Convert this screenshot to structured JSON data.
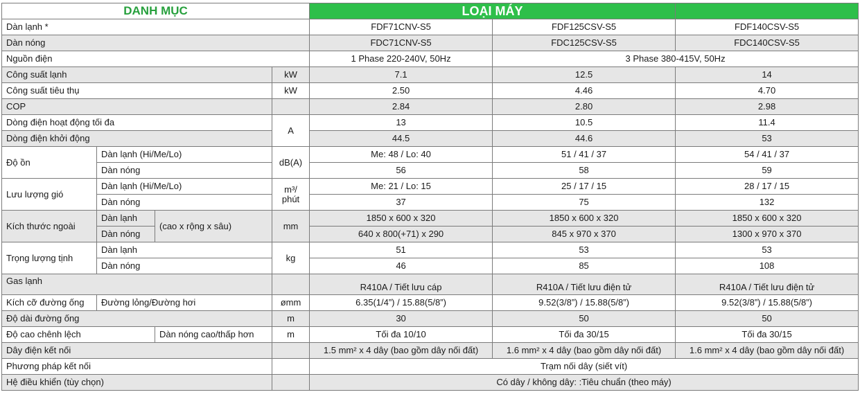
{
  "header": {
    "left": "DANH MỤC",
    "right": "LOẠI MÁY"
  },
  "rows": {
    "indoor": {
      "label": "Dàn lạnh *",
      "v1": "FDF71CNV-S5",
      "v2": "FDF125CSV-S5",
      "v3": "FDF140CSV-S5"
    },
    "outdoor": {
      "label": "Dàn nóng",
      "v1": "FDC71CNV-S5",
      "v2": "FDC125CSV-S5",
      "v3": "FDC140CSV-S5"
    },
    "power": {
      "label": "Nguồn điện",
      "v1": "1 Phase 220-240V, 50Hz",
      "v23": "3 Phase 380-415V, 50Hz"
    },
    "cooling": {
      "label": "Công suất lạnh",
      "unit": "kW",
      "v1": "7.1",
      "v2": "12.5",
      "v3": "14"
    },
    "consumption": {
      "label": "Công suất tiêu thụ",
      "unit": "kW",
      "v1": "2.50",
      "v2": "4.46",
      "v3": "4.70"
    },
    "cop": {
      "label": "COP",
      "v1": "2.84",
      "v2": "2.80",
      "v3": "2.98"
    },
    "max_current": {
      "label": "Dòng điện hoạt động tối đa",
      "unit": "A",
      "v1": "13",
      "v2": "10.5",
      "v3": "11.4"
    },
    "start_current": {
      "label": "Dòng điện khởi động",
      "v1": "44.5",
      "v2": "44.6",
      "v3": "53"
    },
    "noise": {
      "label": "Độ ồn",
      "unit": "dB(A)",
      "indoor": {
        "label": "Dàn lạnh (Hi/Me/Lo)",
        "v1": "Me: 48 / Lo: 40",
        "v2": "51 / 41 / 37",
        "v3": "54 / 41 / 37"
      },
      "outdoor": {
        "label": "Dàn nóng",
        "v1": "56",
        "v2": "58",
        "v3": "59"
      }
    },
    "airflow": {
      "label": "Lưu lượng gió",
      "unit_line1": "m³/",
      "unit_line2": "phút",
      "indoor": {
        "label": "Dàn lạnh (Hi/Me/Lo)",
        "v1": "Me: 21 / Lo: 15",
        "v2": "25 / 17 / 15",
        "v3": "28 / 17 / 15"
      },
      "outdoor": {
        "label": "Dàn nóng",
        "v1": "37",
        "v2": "75",
        "v3": "132"
      }
    },
    "dimensions": {
      "label": "Kích thước ngoài",
      "note": "(cao x rộng x sâu)",
      "unit": "mm",
      "indoor": {
        "label": "Dàn lạnh",
        "v1": "1850 x 600 x 320",
        "v2": "1850 x 600 x 320",
        "v3": "1850 x 600 x 320"
      },
      "outdoor": {
        "label": "Dàn nóng",
        "v1": "640 x 800(+71) x 290",
        "v2": "845 x 970 x 370",
        "v3": "1300 x 970 x 370"
      }
    },
    "weight": {
      "label": "Trọng lượng tịnh",
      "unit": "kg",
      "indoor": {
        "label": "Dàn lạnh",
        "v1": "51",
        "v2": "53",
        "v3": "53"
      },
      "outdoor": {
        "label": "Dàn nóng",
        "v1": "46",
        "v2": "85",
        "v3": "108"
      }
    },
    "gas": {
      "label": "Gas lạnh",
      "v1": "R410A / Tiết lưu cáp",
      "v2": "R410A / Tiết lưu điện tử",
      "v3": "R410A / Tiết lưu điện tử"
    },
    "pipe_size": {
      "label": "Kích cỡ đường ống",
      "sub": "Đường lỏng/Đường hơi",
      "unit": "ømm",
      "v1": "6.35(1/4”) / 15.88(5/8”)",
      "v2": "9.52(3/8”) / 15.88(5/8”)",
      "v3": "9.52(3/8”) / 15.88(5/8”)"
    },
    "pipe_length": {
      "label": "Độ dài đường ống",
      "unit": "m",
      "v1": "30",
      "v2": "50",
      "v3": "50"
    },
    "height_diff": {
      "label": "Độ cao chênh lệch",
      "sub": "Dàn nóng cao/thấp hơn",
      "unit": "m",
      "v1": "Tối đa 10/10",
      "v2": "Tối đa 30/15",
      "v3": "Tối đa 30/15"
    },
    "wiring": {
      "label": "Dây điện kết nối",
      "v1": "1.5 mm² x 4 dây (bao gồm dây nối đất)",
      "v2": "1.6 mm² x 4 dây (bao gồm dây nối đất)",
      "v3": "1.6 mm² x 4 dây (bao gồm dây nối đất)"
    },
    "connection": {
      "label": "Phương pháp kết nối",
      "value": "Trạm nối dây (siết vít)"
    },
    "control": {
      "label": "Hệ điều khiển (tùy chọn)",
      "value": "Có dây / không dây: :Tiêu chuẩn (theo máy)"
    }
  }
}
